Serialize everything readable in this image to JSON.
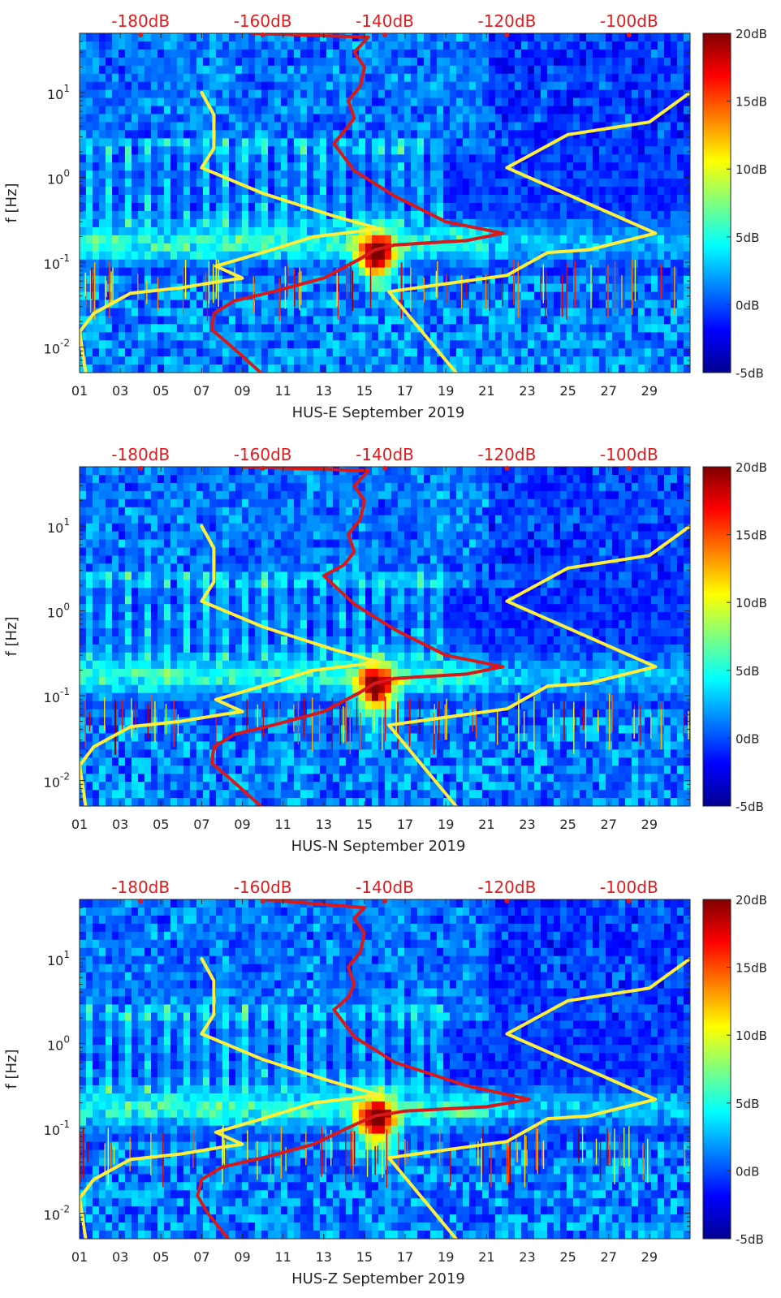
{
  "colors": {
    "noise_model_curve": "#ffef3a",
    "psd_curve": "#d7191c",
    "top_label_color": "#e41a1c",
    "colormap": [
      "#00008f",
      "#0000ff",
      "#0080ff",
      "#00ffff",
      "#80ff80",
      "#ffff00",
      "#ff8000",
      "#ff0000",
      "#800000"
    ]
  },
  "chart_data": [
    {
      "type": "heatmap",
      "title": "",
      "xlabel": "HUS-E September 2019",
      "ylabel": "f [Hz]",
      "x_tick_labels": [
        "01",
        "03",
        "05",
        "07",
        "09",
        "11",
        "13",
        "15",
        "17",
        "19",
        "21",
        "23",
        "25",
        "27",
        "29"
      ],
      "x_range_days": [
        1,
        31
      ],
      "y_scale": "log",
      "y_range_hz": [
        0.005,
        50
      ],
      "y_tick_values": [
        0.01,
        0.1,
        1,
        10
      ],
      "y_tick_labels": [
        "10^-2",
        "10^-1",
        "10^0",
        "10^1"
      ],
      "top_axis_labels": [
        "-180dB",
        "-160dB",
        "-140dB",
        "-120dB",
        "-100dB"
      ],
      "top_axis_range_db": [
        -190,
        -90
      ],
      "colorbar": {
        "range_db": [
          -5,
          20
        ],
        "tick_labels": [
          "20dB",
          "15dB",
          "10dB",
          "5dB",
          "0dB",
          "-5dB"
        ]
      },
      "series": [
        {
          "name": "noise model (yellow)",
          "points_day_hz": [
            [
              1.3,
              0.005
            ],
            [
              1.0,
              0.015
            ],
            [
              1.7,
              0.025
            ],
            [
              3.5,
              0.043
            ],
            [
              6.0,
              0.05
            ],
            [
              8.0,
              0.06
            ],
            [
              9.0,
              0.065
            ],
            [
              7.7,
              0.09
            ],
            [
              10.0,
              0.13
            ],
            [
              12.5,
              0.2
            ],
            [
              15.3,
              0.24
            ],
            [
              15.7,
              0.25
            ],
            [
              13.5,
              0.35
            ],
            [
              10.0,
              0.65
            ],
            [
              7.0,
              1.3
            ],
            [
              7.6,
              2.2
            ],
            [
              7.6,
              5.5
            ],
            [
              7.0,
              10.0
            ]
          ]
        },
        {
          "name": "noise model (yellow) high",
          "points_day_hz": [
            [
              19.5,
              0.005
            ],
            [
              16.2,
              0.045
            ],
            [
              22.0,
              0.07
            ],
            [
              24.0,
              0.13
            ],
            [
              26.0,
              0.14
            ],
            [
              29.3,
              0.22
            ],
            [
              22.0,
              1.3
            ],
            [
              25.0,
              3.2
            ],
            [
              29.0,
              4.5
            ],
            [
              31.0,
              10.0
            ]
          ]
        },
        {
          "name": "PSD (red)",
          "points_day_hz": [
            [
              9.9,
              0.005
            ],
            [
              8.5,
              0.01
            ],
            [
              7.5,
              0.016
            ],
            [
              7.6,
              0.025
            ],
            [
              8.6,
              0.035
            ],
            [
              10.5,
              0.045
            ],
            [
              13.0,
              0.065
            ],
            [
              14.8,
              0.11
            ],
            [
              15.5,
              0.14
            ],
            [
              16.5,
              0.16
            ],
            [
              20.0,
              0.18
            ],
            [
              21.8,
              0.22
            ],
            [
              19.0,
              0.3
            ],
            [
              16.5,
              0.6
            ],
            [
              14.5,
              1.2
            ],
            [
              13.5,
              2.5
            ],
            [
              14.0,
              3.5
            ],
            [
              14.5,
              5.0
            ],
            [
              14.2,
              8.0
            ],
            [
              14.8,
              12.0
            ],
            [
              15.0,
              20.0
            ],
            [
              14.5,
              30.0
            ],
            [
              15.2,
              45.0
            ],
            [
              9.5,
              50.0
            ]
          ]
        }
      ]
    },
    {
      "type": "heatmap",
      "title": "",
      "xlabel": "HUS-N September 2019",
      "ylabel": "f [Hz]",
      "x_tick_labels": [
        "01",
        "03",
        "05",
        "07",
        "09",
        "11",
        "13",
        "15",
        "17",
        "19",
        "21",
        "23",
        "25",
        "27",
        "29"
      ],
      "x_range_days": [
        1,
        31
      ],
      "y_scale": "log",
      "y_range_hz": [
        0.005,
        50
      ],
      "y_tick_values": [
        0.01,
        0.1,
        1,
        10
      ],
      "y_tick_labels": [
        "10^-2",
        "10^-1",
        "10^0",
        "10^1"
      ],
      "top_axis_labels": [
        "-180dB",
        "-160dB",
        "-140dB",
        "-120dB",
        "-100dB"
      ],
      "top_axis_range_db": [
        -190,
        -90
      ],
      "colorbar": {
        "range_db": [
          -5,
          20
        ],
        "tick_labels": [
          "20dB",
          "15dB",
          "10dB",
          "5dB",
          "0dB",
          "-5dB"
        ]
      },
      "series": [
        {
          "name": "noise model (yellow)",
          "points_day_hz": [
            [
              1.3,
              0.005
            ],
            [
              1.0,
              0.015
            ],
            [
              1.7,
              0.025
            ],
            [
              3.5,
              0.043
            ],
            [
              6.0,
              0.05
            ],
            [
              8.0,
              0.06
            ],
            [
              9.0,
              0.065
            ],
            [
              7.7,
              0.09
            ],
            [
              10.0,
              0.13
            ],
            [
              12.5,
              0.2
            ],
            [
              15.3,
              0.24
            ],
            [
              15.7,
              0.25
            ],
            [
              13.5,
              0.35
            ],
            [
              10.0,
              0.65
            ],
            [
              7.0,
              1.3
            ],
            [
              7.6,
              2.2
            ],
            [
              7.6,
              5.5
            ],
            [
              7.0,
              10.0
            ]
          ]
        },
        {
          "name": "noise model (yellow) high",
          "points_day_hz": [
            [
              19.5,
              0.005
            ],
            [
              16.2,
              0.045
            ],
            [
              22.0,
              0.07
            ],
            [
              24.0,
              0.13
            ],
            [
              26.0,
              0.14
            ],
            [
              29.3,
              0.22
            ],
            [
              22.0,
              1.3
            ],
            [
              25.0,
              3.2
            ],
            [
              29.0,
              4.5
            ],
            [
              31.0,
              10.0
            ]
          ]
        },
        {
          "name": "PSD (red)",
          "points_day_hz": [
            [
              9.9,
              0.005
            ],
            [
              8.5,
              0.01
            ],
            [
              7.5,
              0.016
            ],
            [
              7.6,
              0.025
            ],
            [
              8.6,
              0.035
            ],
            [
              10.5,
              0.045
            ],
            [
              13.0,
              0.065
            ],
            [
              14.8,
              0.11
            ],
            [
              15.5,
              0.14
            ],
            [
              16.5,
              0.16
            ],
            [
              20.0,
              0.18
            ],
            [
              21.8,
              0.22
            ],
            [
              19.0,
              0.3
            ],
            [
              16.5,
              0.6
            ],
            [
              14.5,
              1.2
            ],
            [
              13.0,
              2.6
            ],
            [
              14.0,
              3.5
            ],
            [
              14.5,
              5.0
            ],
            [
              14.2,
              8.0
            ],
            [
              14.8,
              12.0
            ],
            [
              15.0,
              20.0
            ],
            [
              14.5,
              30.0
            ],
            [
              15.2,
              45.0
            ],
            [
              9.0,
              50.0
            ]
          ]
        }
      ]
    },
    {
      "type": "heatmap",
      "title": "",
      "xlabel": "HUS-Z September 2019",
      "ylabel": "f [Hz]",
      "x_tick_labels": [
        "01",
        "03",
        "05",
        "07",
        "09",
        "11",
        "13",
        "15",
        "17",
        "19",
        "21",
        "23",
        "25",
        "27",
        "29"
      ],
      "x_range_days": [
        1,
        31
      ],
      "y_scale": "log",
      "y_range_hz": [
        0.005,
        50
      ],
      "y_tick_values": [
        0.01,
        0.1,
        1,
        10
      ],
      "y_tick_labels": [
        "10^-2",
        "10^-1",
        "10^0",
        "10^1"
      ],
      "top_axis_labels": [
        "-180dB",
        "-160dB",
        "-140dB",
        "-120dB",
        "-100dB"
      ],
      "top_axis_range_db": [
        -190,
        -90
      ],
      "colorbar": {
        "range_db": [
          -5,
          20
        ],
        "tick_labels": [
          "20dB",
          "15dB",
          "10dB",
          "5dB",
          "0dB",
          "-5dB"
        ]
      },
      "series": [
        {
          "name": "noise model (yellow)",
          "points_day_hz": [
            [
              1.3,
              0.005
            ],
            [
              1.0,
              0.015
            ],
            [
              1.7,
              0.025
            ],
            [
              3.5,
              0.043
            ],
            [
              6.0,
              0.05
            ],
            [
              8.0,
              0.06
            ],
            [
              9.0,
              0.065
            ],
            [
              7.7,
              0.09
            ],
            [
              10.0,
              0.13
            ],
            [
              12.5,
              0.2
            ],
            [
              15.3,
              0.24
            ],
            [
              15.7,
              0.25
            ],
            [
              13.5,
              0.35
            ],
            [
              10.0,
              0.65
            ],
            [
              7.0,
              1.3
            ],
            [
              7.6,
              2.2
            ],
            [
              7.6,
              5.5
            ],
            [
              7.0,
              10.0
            ]
          ]
        },
        {
          "name": "noise model (yellow) high",
          "points_day_hz": [
            [
              19.5,
              0.005
            ],
            [
              16.2,
              0.045
            ],
            [
              22.0,
              0.07
            ],
            [
              24.0,
              0.13
            ],
            [
              26.0,
              0.14
            ],
            [
              29.3,
              0.22
            ],
            [
              22.0,
              1.3
            ],
            [
              25.0,
              3.2
            ],
            [
              29.0,
              4.5
            ],
            [
              31.0,
              10.0
            ]
          ]
        },
        {
          "name": "PSD (red)",
          "points_day_hz": [
            [
              8.3,
              0.005
            ],
            [
              7.3,
              0.01
            ],
            [
              6.8,
              0.016
            ],
            [
              7.0,
              0.025
            ],
            [
              8.0,
              0.035
            ],
            [
              10.0,
              0.045
            ],
            [
              12.5,
              0.065
            ],
            [
              14.5,
              0.11
            ],
            [
              15.5,
              0.14
            ],
            [
              17.0,
              0.16
            ],
            [
              21.0,
              0.18
            ],
            [
              23.1,
              0.22
            ],
            [
              20.0,
              0.32
            ],
            [
              16.5,
              0.6
            ],
            [
              14.5,
              1.2
            ],
            [
              13.5,
              2.5
            ],
            [
              14.2,
              3.5
            ],
            [
              14.5,
              5.0
            ],
            [
              14.2,
              8.0
            ],
            [
              14.8,
              12.0
            ],
            [
              15.0,
              20.0
            ],
            [
              14.5,
              30.0
            ],
            [
              15.0,
              40.0
            ],
            [
              10.0,
              50.0
            ]
          ]
        }
      ]
    }
  ]
}
